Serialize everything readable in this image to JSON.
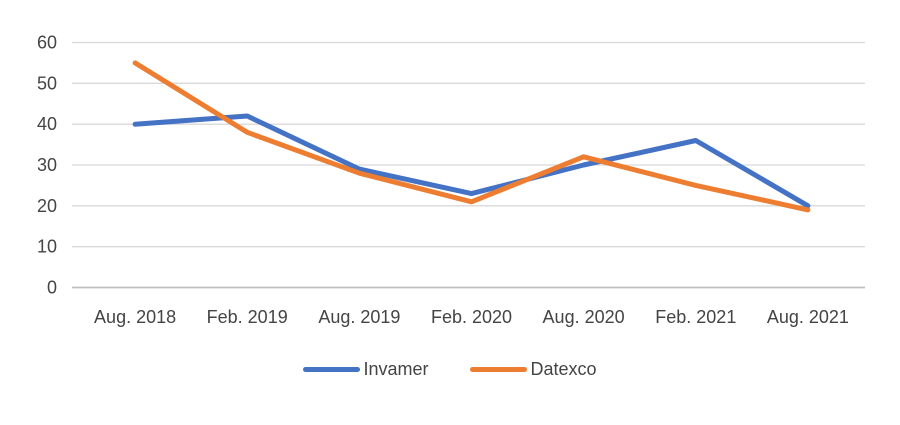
{
  "chart_data": {
    "type": "line",
    "title": "",
    "xlabel": "",
    "ylabel": "",
    "categories": [
      "Aug. 2018",
      "Feb. 2019",
      "Aug. 2019",
      "Feb. 2020",
      "Aug. 2020",
      "Feb. 2021",
      "Aug. 2021"
    ],
    "series": [
      {
        "name": "Invamer",
        "color": "#4472C4",
        "values": [
          40,
          42,
          29,
          23,
          30,
          36,
          20
        ]
      },
      {
        "name": "Datexco",
        "color": "#ED7D31",
        "values": [
          55,
          38,
          28,
          21,
          32,
          25,
          19
        ]
      }
    ],
    "ylim": [
      0,
      60
    ],
    "yticks": [
      0,
      10,
      20,
      30,
      40,
      50,
      60
    ],
    "grid": "horizontal",
    "gridline_color": "#D9D9D9",
    "axis_line_color": "#BFBFBF",
    "axis_label_color": "#444444",
    "line_width": 5,
    "legend_position": "bottom"
  }
}
